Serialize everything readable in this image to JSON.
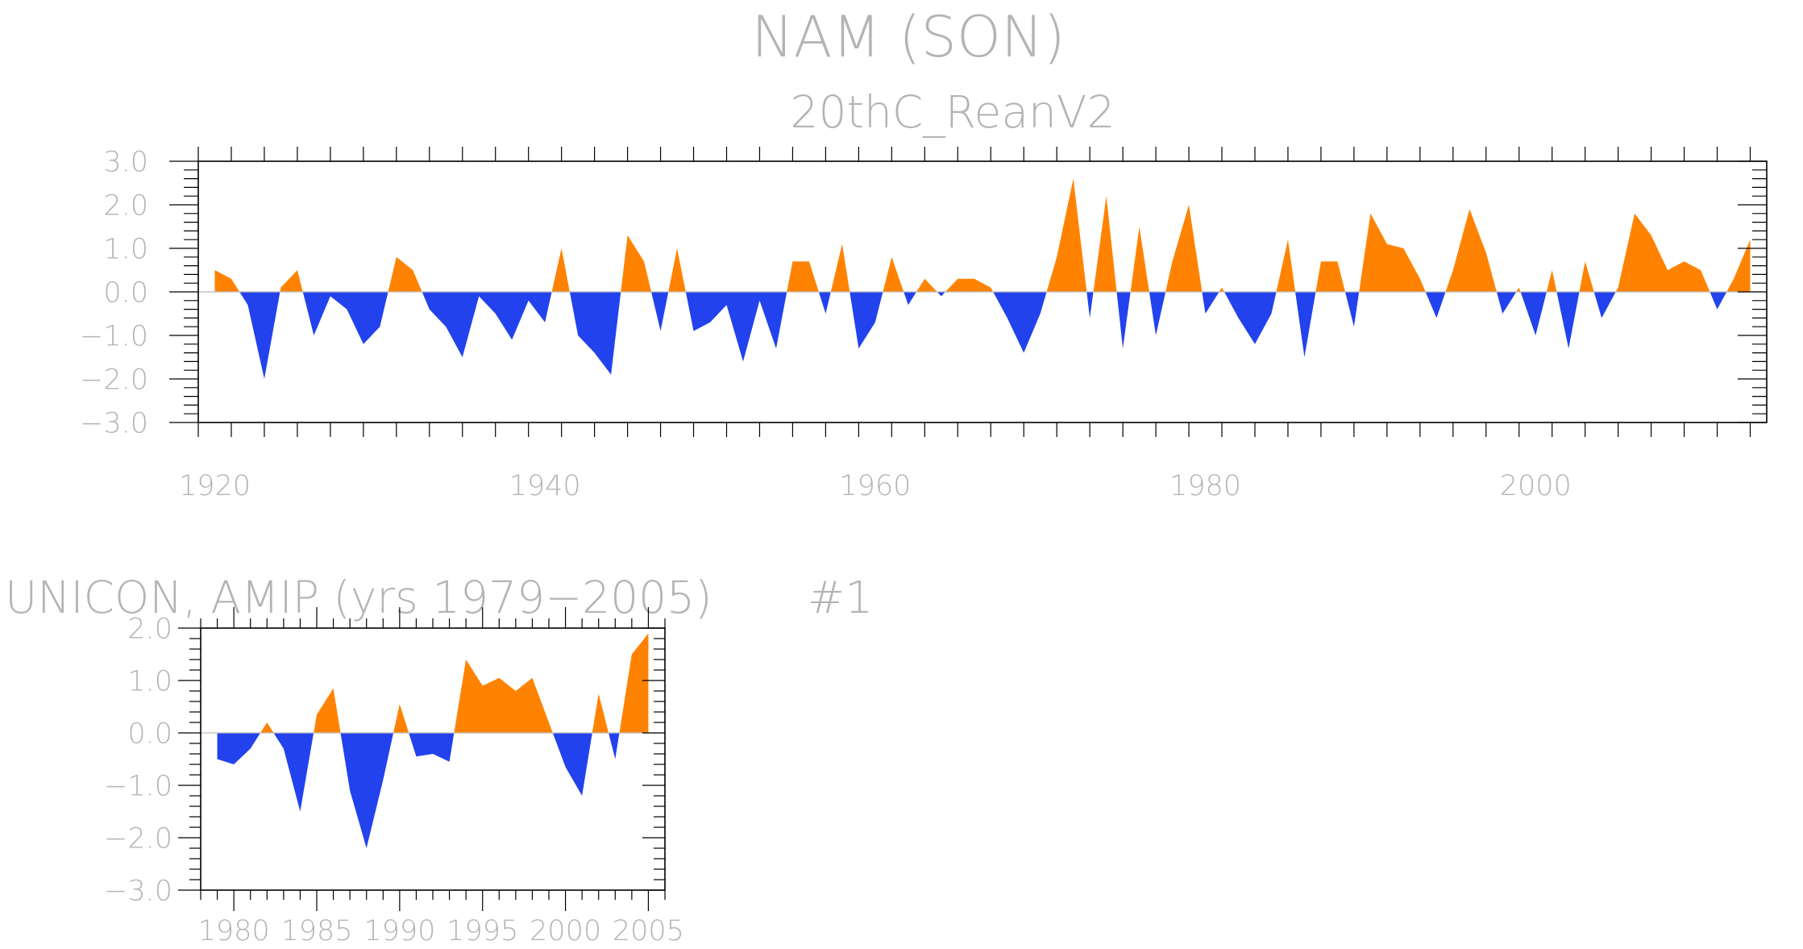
{
  "title": "NAM (SON)",
  "colors": {
    "positive": "#ff8300",
    "negative": "#2242ee",
    "text": "#b4b4b4",
    "axis": "#000000"
  },
  "chart_data": [
    {
      "type": "area",
      "subtitle": "20thC_ReanV2",
      "x_start": 1920,
      "xlim": [
        1919,
        2014
      ],
      "ylim": [
        -3,
        3
      ],
      "x_ticks": [
        1920,
        1940,
        1960,
        1980,
        2000
      ],
      "x_tick_labels": [
        "1920",
        "1940",
        "1960",
        "1980",
        "2000"
      ],
      "y_ticks": [
        3,
        2,
        1,
        0,
        -1,
        -2,
        -3
      ],
      "y_tick_labels": [
        "3.0",
        "2.0",
        "1.0",
        "0.0",
        "−1.0",
        "−2.0",
        "−3.0"
      ],
      "values": [
        0.5,
        0.3,
        -0.3,
        -2.0,
        0.1,
        0.5,
        -1.0,
        -0.1,
        -0.4,
        -1.2,
        -0.8,
        0.8,
        0.5,
        -0.4,
        -0.8,
        -1.5,
        -0.1,
        -0.5,
        -1.1,
        -0.2,
        -0.7,
        1.0,
        -1.0,
        -1.4,
        -1.9,
        1.3,
        0.7,
        -0.9,
        1.0,
        -0.9,
        -0.7,
        -0.3,
        -1.6,
        -0.2,
        -1.3,
        0.7,
        0.7,
        -0.5,
        1.1,
        -1.3,
        -0.7,
        0.8,
        -0.3,
        0.3,
        -0.1,
        0.3,
        0.3,
        0.1,
        -0.6,
        -1.4,
        -0.5,
        0.8,
        2.6,
        -0.6,
        2.2,
        -1.3,
        1.5,
        -1.0,
        0.7,
        2.0,
        -0.5,
        0.1,
        -0.6,
        -1.2,
        -0.5,
        1.2,
        -1.5,
        0.7,
        0.7,
        -0.8,
        1.8,
        1.1,
        1.0,
        0.3,
        -0.6,
        0.5,
        1.9,
        0.9,
        -0.5,
        0.1,
        -1.0,
        0.5,
        -1.3,
        0.7,
        -0.6,
        0.1,
        1.8,
        1.3,
        0.5,
        0.7,
        0.5,
        -0.4,
        0.3,
        1.2
      ]
    },
    {
      "type": "area",
      "subtitle_left": "UNICON, AMIP (yrs 1979−2005)",
      "subtitle_right": "#1",
      "x_start": 1979,
      "xlim": [
        1978,
        2006
      ],
      "ylim": [
        -3,
        2
      ],
      "x_ticks": [
        1980,
        1985,
        1990,
        1995,
        2000,
        2005
      ],
      "x_tick_labels": [
        "1980",
        "1985",
        "1990",
        "1995",
        "2000",
        "2005"
      ],
      "y_ticks": [
        2,
        1,
        0,
        -1,
        -2,
        -3
      ],
      "y_tick_labels": [
        "2.0",
        "1.0",
        "0.0",
        "−1.0",
        "−2.0",
        "−3.0"
      ],
      "values": [
        -0.5,
        -0.6,
        -0.3,
        0.2,
        -0.3,
        -1.5,
        0.35,
        0.85,
        -1.1,
        -2.2,
        -0.9,
        0.55,
        -0.45,
        -0.4,
        -0.55,
        1.4,
        0.9,
        1.05,
        0.8,
        1.05,
        0.2,
        -0.65,
        -1.2,
        0.75,
        -0.5,
        1.5,
        1.9
      ]
    }
  ]
}
